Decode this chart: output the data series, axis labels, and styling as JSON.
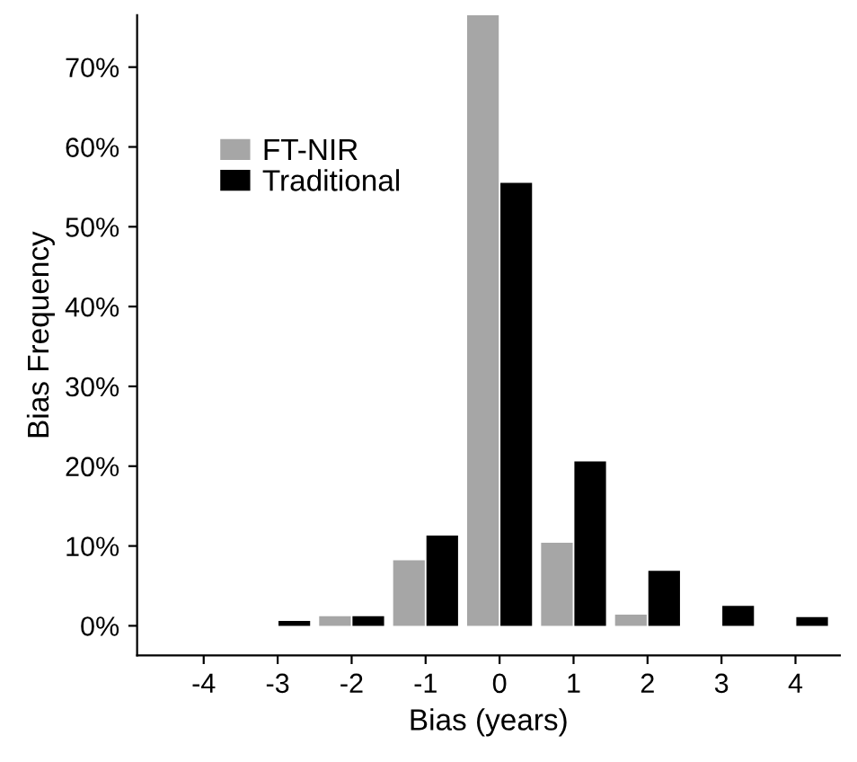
{
  "chart_data": {
    "type": "bar",
    "xlabel": "Bias (years)",
    "ylabel": "Bias Frequency",
    "x": [
      -4,
      -3,
      -2,
      -1,
      0,
      1,
      2,
      3,
      4
    ],
    "series": [
      {
        "name": "FT-NIR",
        "color": "#a6a6a6",
        "values": [
          0,
          0,
          1.2,
          8.2,
          76.5,
          10.4,
          1.4,
          0,
          0
        ]
      },
      {
        "name": "Traditional",
        "color": "#000000",
        "values": [
          0,
          0.6,
          1.2,
          11.3,
          55.5,
          20.6,
          6.9,
          2.5,
          1.1
        ]
      }
    ],
    "xlim": [
      -4.9,
      4.6
    ],
    "xticks": [
      -4,
      -3,
      -2,
      -1,
      0,
      1,
      2,
      3,
      4
    ],
    "ylim": [
      -3.7,
      76.5
    ],
    "yticks": [
      {
        "value": 0,
        "label": "0%"
      },
      {
        "value": 10,
        "label": "10%"
      },
      {
        "value": 20,
        "label": "20%"
      },
      {
        "value": 30,
        "label": "30%"
      },
      {
        "value": 40,
        "label": "40%"
      },
      {
        "value": 50,
        "label": "50%"
      },
      {
        "value": 60,
        "label": "60%"
      },
      {
        "value": 70,
        "label": "70%"
      }
    ],
    "grid": false,
    "legend": "top left"
  }
}
